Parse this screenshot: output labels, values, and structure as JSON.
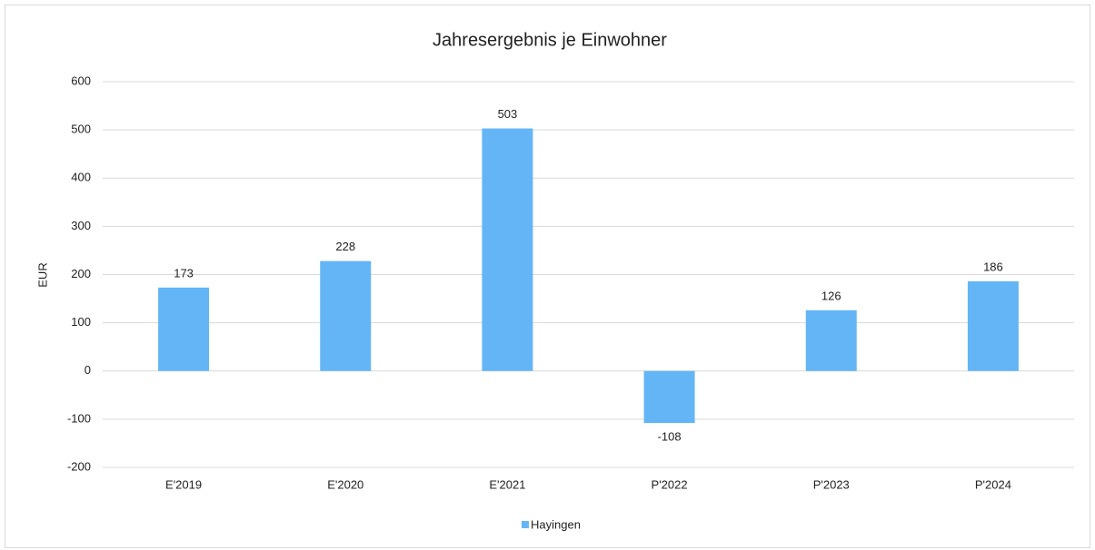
{
  "chart_data": {
    "type": "bar",
    "title": "Jahresergebnis je Einwohner",
    "y_label": "EUR",
    "categories": [
      "E'2019",
      "E'2020",
      "E'2021",
      "P'2022",
      "P'2023",
      "P'2024"
    ],
    "series": [
      {
        "name": "Hayingen",
        "color": "#64b5f6",
        "values": [
          173,
          228,
          503,
          -108,
          126,
          186
        ]
      }
    ],
    "ylim": [
      -200,
      600
    ],
    "yticks": [
      -200,
      -100,
      0,
      100,
      200,
      300,
      400,
      500,
      600
    ],
    "grid": true,
    "legend": "bottom"
  }
}
